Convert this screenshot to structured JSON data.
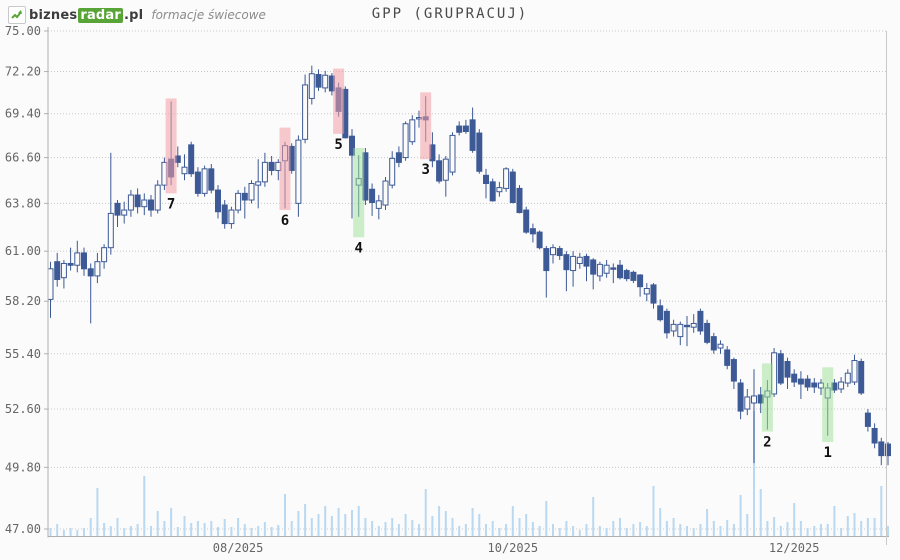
{
  "header": {
    "logo_prefix": "biznes",
    "logo_highlight": "radar",
    "logo_suffix": ".pl",
    "subtitle": "formacje świecowe"
  },
  "title": "GPP (GRUPRACUJ)",
  "colors": {
    "background": "#fbfbfb",
    "candle": "#3d5a96",
    "volume": "#b9d8f1",
    "grid": "#c9c9c9",
    "axis": "#b0b0b0",
    "tick_text": "#666666",
    "bearish_highlight": "rgba(242,158,166,0.55)",
    "bullish_highlight": "rgba(156,224,148,0.5)",
    "pattern_label": "#111111",
    "logo_green": "#58a437"
  },
  "chart_data": {
    "type": "candlestick+volume",
    "title": "GPP (GRUPRACUJ)",
    "y_axis": {
      "scale": "log",
      "min": 47.0,
      "max": 75.0,
      "tick_labels": [
        "75.00",
        "72.20",
        "69.40",
        "66.60",
        "63.80",
        "61.00",
        "58.20",
        "55.40",
        "52.60",
        "49.80",
        "47.00"
      ]
    },
    "x_axis": {
      "ticks": [
        {
          "label": "08/2025",
          "index": 28
        },
        {
          "label": "10/2025",
          "index": 69
        },
        {
          "label": "12/2025",
          "index": 111
        }
      ]
    },
    "grid": "dotted-horizontal",
    "candles": [
      [
        58.3,
        60.4,
        57.3,
        60.0
      ],
      [
        60.4,
        60.9,
        59.0,
        59.4
      ],
      [
        59.5,
        60.5,
        58.9,
        60.3
      ],
      [
        60.3,
        61.2,
        59.9,
        60.2
      ],
      [
        60.2,
        61.6,
        59.8,
        60.9
      ],
      [
        60.9,
        61.2,
        59.6,
        60.0
      ],
      [
        60.0,
        60.3,
        57.0,
        59.6
      ],
      [
        59.6,
        60.9,
        59.2,
        60.4
      ],
      [
        60.4,
        61.4,
        60.0,
        61.2
      ],
      [
        61.2,
        66.9,
        60.8,
        63.2
      ],
      [
        63.8,
        64.0,
        62.4,
        63.1
      ],
      [
        63.1,
        63.9,
        62.6,
        63.4
      ],
      [
        63.4,
        64.6,
        63.0,
        64.3
      ],
      [
        64.3,
        64.7,
        63.2,
        63.6
      ],
      [
        63.6,
        64.4,
        63.1,
        64.0
      ],
      [
        64.0,
        64.3,
        63.0,
        63.4
      ],
      [
        63.4,
        65.2,
        63.2,
        64.9
      ],
      [
        64.9,
        66.6,
        64.6,
        66.3
      ],
      [
        66.5,
        70.2,
        64.9,
        65.4
      ],
      [
        66.7,
        67.3,
        66.0,
        66.3
      ],
      [
        65.6,
        66.8,
        65.2,
        66.0
      ],
      [
        67.4,
        67.6,
        65.4,
        65.6
      ],
      [
        65.7,
        66.0,
        64.2,
        64.4
      ],
      [
        64.4,
        66.1,
        64.2,
        65.9
      ],
      [
        65.9,
        66.2,
        64.4,
        64.6
      ],
      [
        64.6,
        64.9,
        62.9,
        63.3
      ],
      [
        63.7,
        64.0,
        62.3,
        62.6
      ],
      [
        62.6,
        63.6,
        62.3,
        63.4
      ],
      [
        63.4,
        64.6,
        63.2,
        64.4
      ],
      [
        64.4,
        64.8,
        62.9,
        64.0
      ],
      [
        64.0,
        65.2,
        63.8,
        65.0
      ],
      [
        64.9,
        66.5,
        63.5,
        65.1
      ],
      [
        65.1,
        66.9,
        64.8,
        66.3
      ],
      [
        66.3,
        66.7,
        65.5,
        65.8
      ],
      [
        65.8,
        66.5,
        65.2,
        66.3
      ],
      [
        66.4,
        67.6,
        63.5,
        67.35
      ],
      [
        67.3,
        67.5,
        65.6,
        65.8
      ],
      [
        63.8,
        68.0,
        63.0,
        67.7
      ],
      [
        67.75,
        72.0,
        67.5,
        71.3
      ],
      [
        70.4,
        72.6,
        70.0,
        72.05
      ],
      [
        72.0,
        72.35,
        70.9,
        71.15
      ],
      [
        71.1,
        72.25,
        70.8,
        71.95
      ],
      [
        71.9,
        72.1,
        70.6,
        70.9
      ],
      [
        71.1,
        71.45,
        69.2,
        69.55
      ],
      [
        71.0,
        71.2,
        67.8,
        67.85
      ],
      [
        67.95,
        68.4,
        62.9,
        66.75
      ],
      [
        64.9,
        66.75,
        63.0,
        65.3
      ],
      [
        66.9,
        67.2,
        63.7,
        64.0
      ],
      [
        64.65,
        65.0,
        63.05,
        63.85
      ],
      [
        63.5,
        64.3,
        62.85,
        63.95
      ],
      [
        63.7,
        65.4,
        63.4,
        65.15
      ],
      [
        64.9,
        67.0,
        64.7,
        66.55
      ],
      [
        66.9,
        67.3,
        66.0,
        66.3
      ],
      [
        66.6,
        68.9,
        66.4,
        68.75
      ],
      [
        67.6,
        69.3,
        67.4,
        69.0
      ],
      [
        69.1,
        69.6,
        68.5,
        69.15
      ],
      [
        69.2,
        70.55,
        67.6,
        69.0
      ],
      [
        67.4,
        68.2,
        66.0,
        66.4
      ],
      [
        66.4,
        66.8,
        65.0,
        65.15
      ],
      [
        65.2,
        66.7,
        64.2,
        66.5
      ],
      [
        65.7,
        68.2,
        65.5,
        68.0
      ],
      [
        68.6,
        68.9,
        68.0,
        68.2
      ],
      [
        68.6,
        69.0,
        68.1,
        68.25
      ],
      [
        69.0,
        69.8,
        66.9,
        67.05
      ],
      [
        68.15,
        68.4,
        65.6,
        65.75
      ],
      [
        65.5,
        65.9,
        64.1,
        65.0
      ],
      [
        65.1,
        65.3,
        63.9,
        63.95
      ],
      [
        64.5,
        65.1,
        64.2,
        64.75
      ],
      [
        64.7,
        66.0,
        64.5,
        65.9
      ],
      [
        65.7,
        65.9,
        63.8,
        63.85
      ],
      [
        64.7,
        64.9,
        63.2,
        63.25
      ],
      [
        63.4,
        63.6,
        62.0,
        62.1
      ],
      [
        62.3,
        62.6,
        61.5,
        62.0
      ],
      [
        62.1,
        62.2,
        61.1,
        61.2
      ],
      [
        61.15,
        61.3,
        58.4,
        59.9
      ],
      [
        60.8,
        61.4,
        60.3,
        61.2
      ],
      [
        61.15,
        61.3,
        60.5,
        60.75
      ],
      [
        60.8,
        61.0,
        58.75,
        59.95
      ],
      [
        59.9,
        61.0,
        59.0,
        60.7
      ],
      [
        60.3,
        60.9,
        60.0,
        60.65
      ],
      [
        60.7,
        60.85,
        59.3,
        60.15
      ],
      [
        60.5,
        60.6,
        58.85,
        59.7
      ],
      [
        59.6,
        60.4,
        59.3,
        60.25
      ],
      [
        59.75,
        60.5,
        59.5,
        60.2
      ],
      [
        60.05,
        60.3,
        59.2,
        60.0
      ],
      [
        60.2,
        60.5,
        59.4,
        59.5
      ],
      [
        59.9,
        60.0,
        59.3,
        59.45
      ],
      [
        59.8,
        59.9,
        59.2,
        59.35
      ],
      [
        59.65,
        59.7,
        58.45,
        59.0
      ],
      [
        58.6,
        59.2,
        58.2,
        58.9
      ],
      [
        59.1,
        59.2,
        57.8,
        58.1
      ],
      [
        57.95,
        58.3,
        57.1,
        57.2
      ],
      [
        57.65,
        57.8,
        56.2,
        56.5
      ],
      [
        56.6,
        57.2,
        56.3,
        56.95
      ],
      [
        56.3,
        57.1,
        55.85,
        56.95
      ],
      [
        56.9,
        57.4,
        55.8,
        56.85
      ],
      [
        56.8,
        57.5,
        56.5,
        57.0
      ],
      [
        57.65,
        57.8,
        56.4,
        56.6
      ],
      [
        57.0,
        57.2,
        55.9,
        56.0
      ],
      [
        56.3,
        56.5,
        55.4,
        55.6
      ],
      [
        55.7,
        56.1,
        55.4,
        55.9
      ],
      [
        55.6,
        55.8,
        54.6,
        54.8
      ],
      [
        55.1,
        55.2,
        53.6,
        54.0
      ],
      [
        53.9,
        54.1,
        52.1,
        52.5
      ],
      [
        52.6,
        53.6,
        52.3,
        53.2
      ],
      [
        52.9,
        54.6,
        50.0,
        53.25
      ],
      [
        53.3,
        53.7,
        52.4,
        52.9
      ],
      [
        53.2,
        54.05,
        51.6,
        53.5
      ],
      [
        53.35,
        55.7,
        53.2,
        55.45
      ],
      [
        55.4,
        55.6,
        53.8,
        53.9
      ],
      [
        55.0,
        55.2,
        53.6,
        54.2
      ],
      [
        54.35,
        54.6,
        53.7,
        53.95
      ],
      [
        54.1,
        54.5,
        53.1,
        53.85
      ],
      [
        54.1,
        54.3,
        53.5,
        53.7
      ],
      [
        53.9,
        54.15,
        53.4,
        53.7
      ],
      [
        53.65,
        54.1,
        53.3,
        53.9
      ],
      [
        53.15,
        53.9,
        51.3,
        53.65
      ],
      [
        53.9,
        54.1,
        53.4,
        53.55
      ],
      [
        53.6,
        54.2,
        53.4,
        53.95
      ],
      [
        53.9,
        54.6,
        53.7,
        54.4
      ],
      [
        53.95,
        55.35,
        53.8,
        55.05
      ],
      [
        55.0,
        55.15,
        53.3,
        53.4
      ],
      [
        52.4,
        52.6,
        51.5,
        51.75
      ],
      [
        51.65,
        51.9,
        50.7,
        50.95
      ],
      [
        51.0,
        51.2,
        49.9,
        50.35
      ],
      [
        50.9,
        51.0,
        49.9,
        50.35
      ]
    ],
    "volume_rel": [
      8,
      12,
      6,
      8,
      6,
      8,
      18,
      48,
      13,
      10,
      18,
      8,
      10,
      12,
      60,
      10,
      25,
      15,
      28,
      9,
      20,
      13,
      15,
      13,
      15,
      9,
      17,
      9,
      18,
      12,
      8,
      10,
      14,
      9,
      11,
      42,
      15,
      25,
      32,
      18,
      22,
      30,
      20,
      28,
      22,
      26,
      30,
      18,
      15,
      10,
      14,
      18,
      12,
      22,
      16,
      12,
      47,
      20,
      30,
      25,
      18,
      10,
      12,
      28,
      22,
      12,
      15,
      8,
      12,
      30,
      18,
      22,
      14,
      10,
      35,
      12,
      8,
      15,
      10,
      6,
      12,
      39,
      10,
      8,
      15,
      18,
      8,
      12,
      14,
      10,
      50,
      28,
      15,
      18,
      12,
      10,
      8,
      12,
      27,
      15,
      10,
      16,
      12,
      41,
      22,
      125,
      47,
      15,
      19,
      10,
      14,
      33,
      15,
      8,
      10,
      12,
      12,
      30,
      8,
      20,
      23,
      15,
      18,
      18,
      50,
      10
    ],
    "patterns": [
      {
        "label": "7",
        "index": 18,
        "type": "bearish",
        "price_low": 64.4,
        "price_high": 70.4
      },
      {
        "label": "6",
        "index": 35,
        "type": "bearish",
        "price_low": 63.4,
        "price_high": 68.5
      },
      {
        "label": "5",
        "index": 43,
        "type": "bearish",
        "price_low": 68.1,
        "price_high": 72.4
      },
      {
        "label": "4",
        "index": 46,
        "type": "bullish",
        "price_low": 61.8,
        "price_high": 67.2
      },
      {
        "label": "3",
        "index": 56,
        "type": "bearish",
        "price_low": 66.5,
        "price_high": 70.8
      },
      {
        "label": "2",
        "index": 107,
        "type": "bullish",
        "price_low": 51.5,
        "price_high": 54.9
      },
      {
        "label": "1",
        "index": 116,
        "type": "bullish",
        "price_low": 51.0,
        "price_high": 54.7
      }
    ]
  }
}
